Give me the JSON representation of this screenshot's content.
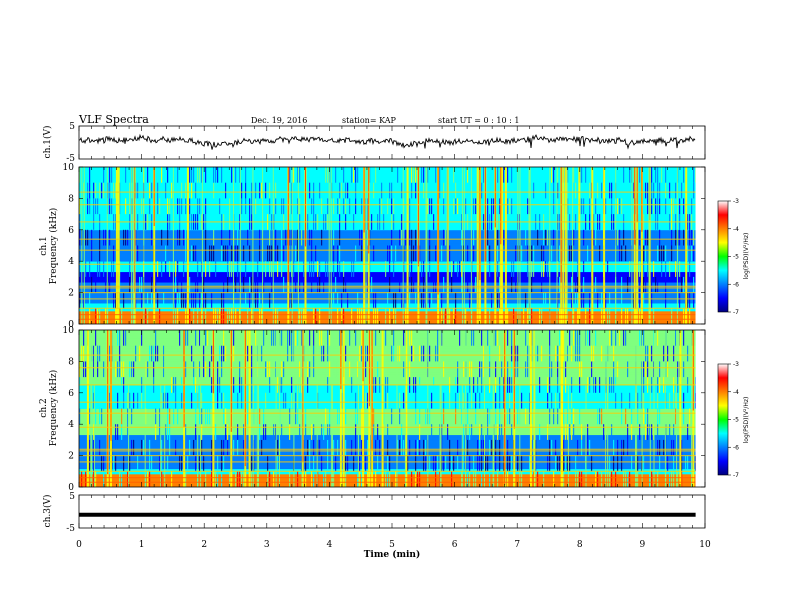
{
  "header": {
    "title": "VLF Spectra",
    "date": "Dec. 19, 2016",
    "station": "station= KAP",
    "start_ut": "start  UT =   0 : 10 : 1"
  },
  "chart_data": {
    "type": "heatmap",
    "x_axis": {
      "label": "Time  (min)",
      "range": [
        0,
        10
      ],
      "ticks": [
        "0",
        "1",
        "2",
        "3",
        "4",
        "5",
        "6",
        "7",
        "8",
        "9",
        "10"
      ]
    },
    "panels": [
      {
        "id": "ch1_voltage",
        "type": "line",
        "ylabel": "ch.1(V)",
        "ylim": [
          -5,
          5
        ],
        "ticks": [
          "5",
          "-5"
        ],
        "trace_end_min": 9.85,
        "baseline_v": 0.5,
        "noise_v": 1.6
      },
      {
        "id": "ch1_spectrum",
        "type": "heatmap",
        "ylabel": "ch.1\nFrequency  (kHz)",
        "ylim": [
          0,
          10
        ],
        "ticks": [
          "0",
          "2",
          "4",
          "6",
          "8",
          "10"
        ],
        "colorbar": {
          "label": "log(PSD)(V²/Hz)",
          "range": [
            -7,
            -3
          ],
          "ticks": [
            "-3",
            "-4",
            "-5",
            "-6",
            "-7"
          ]
        }
      },
      {
        "id": "ch2_spectrum",
        "type": "heatmap",
        "ylabel": "ch.2\nFrequency  (kHz)",
        "ylim": [
          0,
          10
        ],
        "ticks": [
          "0",
          "2",
          "4",
          "6",
          "8",
          "10"
        ],
        "colorbar": {
          "label": "log(PSD)(V²/Hz)",
          "range": [
            -7,
            -3
          ],
          "ticks": [
            "-3",
            "-4",
            "-5",
            "-6",
            "-7"
          ]
        }
      },
      {
        "id": "ch3_voltage",
        "type": "line",
        "ylabel": "ch.3(V)",
        "ylim": [
          -5,
          5
        ],
        "ticks": [
          "5",
          "-5"
        ],
        "constant_v": -1,
        "trace_end_min": 9.85
      }
    ],
    "data_end_min": 9.85,
    "colormap": [
      "#00007f",
      "#0000ff",
      "#007fff",
      "#00ffff",
      "#7fff7f",
      "#ffff00",
      "#ff7f00",
      "#ff0000",
      "#7f0000"
    ]
  }
}
